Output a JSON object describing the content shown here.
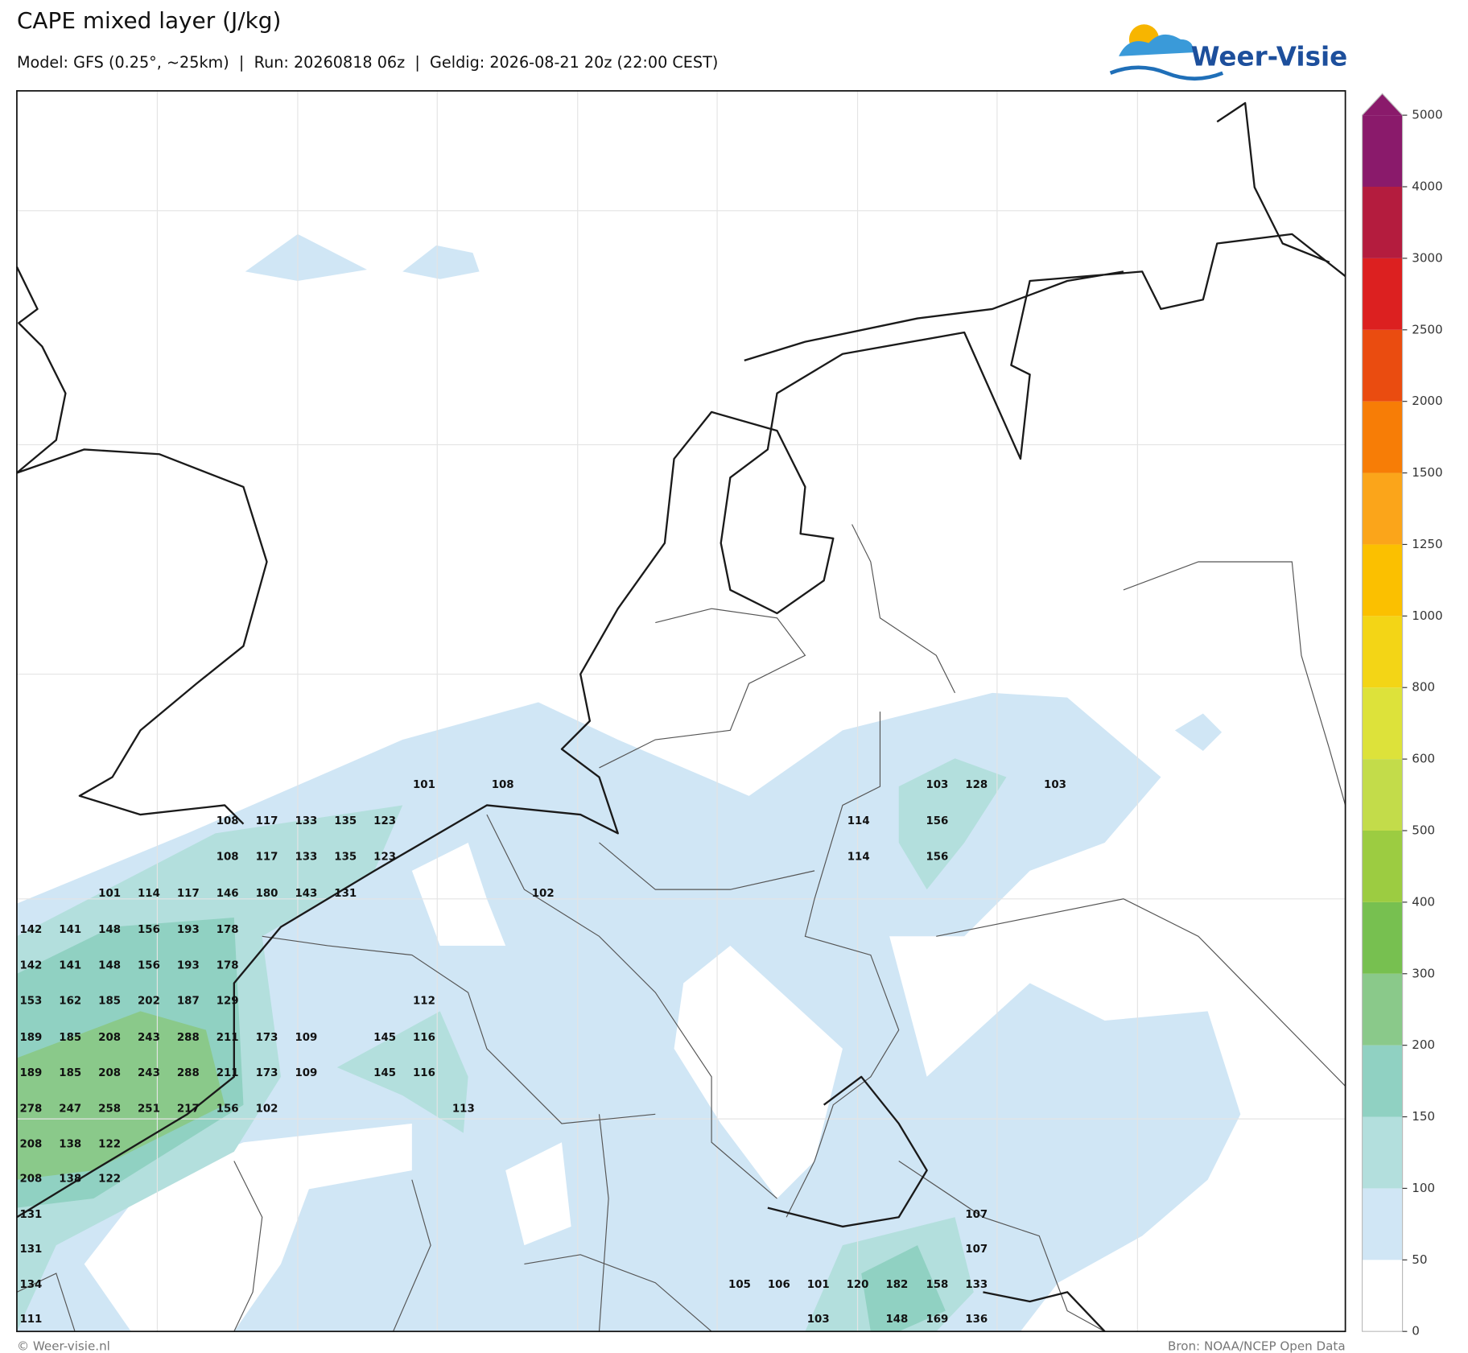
{
  "header": {
    "title": "CAPE mixed layer (J/kg)",
    "subtitle": "Model: GFS (0.25°, ~25km)  |  Run: 20260818 06z  |  Geldig: 2026-08-21 20z (22:00 CEST)",
    "logo": "Weer-Visie"
  },
  "colorbar": {
    "ticks": [
      0,
      50,
      100,
      150,
      200,
      300,
      400,
      500,
      600,
      800,
      1000,
      1250,
      1500,
      2000,
      2500,
      3000,
      4000,
      5000
    ],
    "colors": [
      "#ffffff",
      "#d0e6f5",
      "#b3dfdd",
      "#90d1c2",
      "#8ac98a",
      "#77c050",
      "#9ccc41",
      "#c3dc4a",
      "#dde23a",
      "#f3d516",
      "#fbc000",
      "#fba51a",
      "#f77d06",
      "#ea4c10",
      "#dc2020",
      "#b41c3e",
      "#8a1a6b"
    ]
  },
  "map_labels": [
    [
      101,
      108,
      103,
      128,
      103
    ],
    [
      108,
      117,
      133,
      135,
      123,
      114,
      156
    ],
    [
      108,
      117,
      133,
      135,
      123,
      114,
      156
    ],
    [
      101,
      114,
      117,
      146,
      180,
      143,
      131,
      102
    ],
    [
      142,
      141,
      148,
      156,
      193,
      178
    ],
    [
      142,
      141,
      148,
      156,
      193,
      178
    ],
    [
      153,
      162,
      185,
      202,
      187,
      129,
      112
    ],
    [
      189,
      185,
      208,
      243,
      288,
      211,
      173,
      109,
      145,
      116
    ],
    [
      189,
      185,
      208,
      243,
      288,
      211,
      173,
      109,
      145,
      116
    ],
    [
      278,
      247,
      258,
      251,
      217,
      156,
      102,
      113
    ],
    [
      208,
      138,
      122
    ],
    [
      208,
      138,
      122
    ],
    [
      131,
      107
    ],
    [
      131,
      107
    ],
    [
      134,
      105,
      106,
      101,
      120,
      182,
      158,
      133
    ],
    [
      111,
      103,
      148,
      169,
      136
    ]
  ],
  "footer": {
    "credit": "© Weer-visie.nl",
    "source": "Bron: NOAA/NCEP Open Data"
  }
}
